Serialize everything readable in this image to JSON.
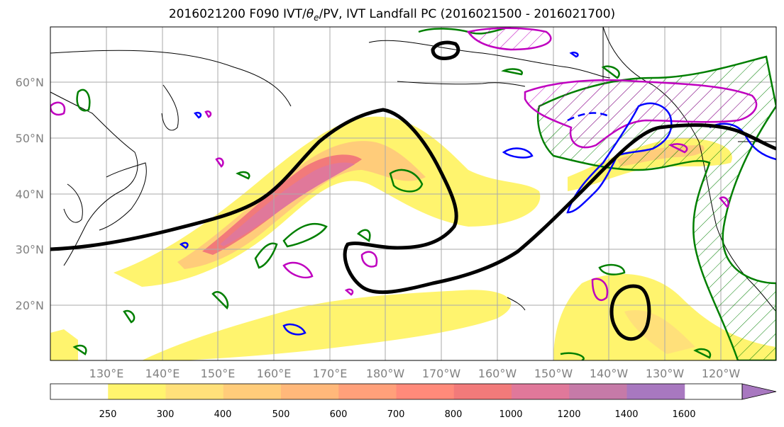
{
  "title": {
    "prefix": "2016021200 F090 IVT/",
    "theta": "θ",
    "theta_sub": "e",
    "suffix": "/PV, IVT Landfall PC (2016021500 - 2016021700)"
  },
  "map": {
    "lat_labels": [
      "60°N",
      "50°N",
      "40°N",
      "30°N",
      "20°N"
    ],
    "lon_labels": [
      "130°E",
      "140°E",
      "150°E",
      "160°E",
      "170°E",
      "180°W",
      "170°W",
      "160°W",
      "150°W",
      "140°W",
      "130°W",
      "120°W"
    ],
    "colors": {
      "pc_contour": "#000000",
      "theta_e_contour": "#007f00",
      "pv_contour": "#0000ff",
      "hatched_contour": "#bf00bf",
      "coastline": "#000000",
      "gridline": "#aaaaaa"
    }
  },
  "colorbar": {
    "ticks": [
      "250",
      "300",
      "400",
      "500",
      "600",
      "700",
      "800",
      "1000",
      "1200",
      "1400",
      "1600"
    ],
    "colors": [
      "#ffffff",
      "#fff46e",
      "#ffe07a",
      "#ffcc7a",
      "#ffb87a",
      "#ffa07a",
      "#ff8a7a",
      "#f27a7a",
      "#e0789a",
      "#c67aa8",
      "#a878c0"
    ]
  }
}
